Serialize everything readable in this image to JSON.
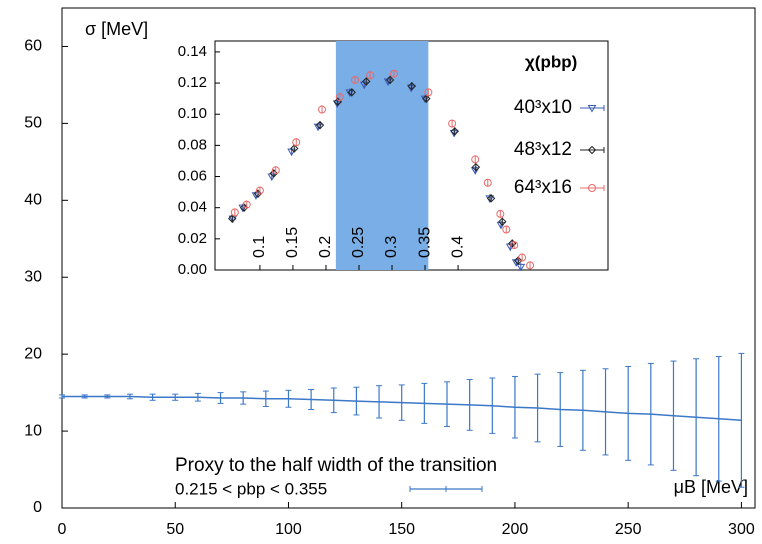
{
  "chart_data": [
    {
      "type": "line",
      "y_label": "σ [MeV]",
      "x_label": "μB [MeV]",
      "legend_title": "Proxy to the half width of the transition",
      "xlim": [
        0,
        306
      ],
      "ylim": [
        0,
        65
      ],
      "xticks": [
        0,
        50,
        100,
        150,
        200,
        250,
        300
      ],
      "yticks": [
        0,
        10,
        20,
        30,
        40,
        50,
        60
      ],
      "x": [
        0,
        10,
        20,
        30,
        40,
        50,
        60,
        70,
        80,
        90,
        100,
        110,
        120,
        130,
        140,
        150,
        160,
        170,
        180,
        190,
        200,
        210,
        220,
        230,
        240,
        250,
        260,
        270,
        280,
        290,
        300
      ],
      "series": [
        {
          "name": "0.215 < pbp < 0.355",
          "color": "#3b78c8",
          "values": [
            14.5,
            14.5,
            14.5,
            14.5,
            14.4,
            14.4,
            14.4,
            14.3,
            14.3,
            14.2,
            14.2,
            14.1,
            14.0,
            13.9,
            13.8,
            13.7,
            13.6,
            13.5,
            13.4,
            13.3,
            13.1,
            13.0,
            12.8,
            12.7,
            12.5,
            12.3,
            12.2,
            12.0,
            11.8,
            11.6,
            11.4
          ],
          "errors": [
            0.2,
            0.2,
            0.2,
            0.3,
            0.4,
            0.4,
            0.5,
            0.7,
            0.8,
            1.0,
            1.1,
            1.3,
            1.6,
            1.8,
            2.1,
            2.3,
            2.6,
            2.9,
            3.3,
            3.6,
            4.0,
            4.4,
            4.8,
            5.2,
            5.6,
            6.1,
            6.6,
            7.1,
            7.6,
            8.1,
            8.7
          ]
        }
      ]
    },
    {
      "type": "scatter",
      "legend_title": "χ(pbp)",
      "xlim": [
        0.032,
        0.627
      ],
      "ylim": [
        0,
        0.147
      ],
      "xticks": [
        0.1,
        0.15,
        0.2,
        0.25,
        0.3,
        0.35,
        0.4
      ],
      "yticks": [
        {
          "value": 0,
          "label": "0.00"
        },
        {
          "value": 0.02,
          "label": "0.02"
        },
        {
          "value": 0.04,
          "label": "0.04"
        },
        {
          "value": 0.06,
          "label": "0.06"
        },
        {
          "value": 0.08,
          "label": "0.08"
        },
        {
          "value": 0.1,
          "label": "0.10"
        },
        {
          "value": 0.12,
          "label": "0.12"
        },
        {
          "value": 0.14,
          "label": "0.14"
        }
      ],
      "shade": [
        0.215,
        0.355
      ],
      "shade_color": "#7aaee6",
      "series": [
        {
          "name": "40³x10",
          "color": "#3a5bb5",
          "marker": "triangle-down",
          "x": [
            0.059,
            0.074,
            0.094,
            0.118,
            0.148,
            0.188,
            0.217,
            0.236,
            0.258,
            0.294,
            0.329,
            0.35,
            0.394,
            0.426,
            0.448,
            0.465,
            0.479,
            0.488,
            0.495
          ],
          "values": [
            0.033,
            0.04,
            0.048,
            0.06,
            0.076,
            0.092,
            0.107,
            0.114,
            0.119,
            0.121,
            0.117,
            0.11,
            0.088,
            0.064,
            0.046,
            0.029,
            0.015,
            0.005,
            0.002
          ]
        },
        {
          "name": "48³x12",
          "color": "#222222",
          "marker": "diamond",
          "x": [
            0.058,
            0.076,
            0.097,
            0.121,
            0.152,
            0.191,
            0.218,
            0.239,
            0.261,
            0.297,
            0.33,
            0.352,
            0.395,
            0.427,
            0.45,
            0.467,
            0.482,
            0.491
          ],
          "values": [
            0.033,
            0.04,
            0.049,
            0.062,
            0.078,
            0.093,
            0.108,
            0.114,
            0.121,
            0.122,
            0.118,
            0.11,
            0.089,
            0.066,
            0.046,
            0.031,
            0.017,
            0.006
          ]
        },
        {
          "name": "64³x16",
          "color": "#e86a6a",
          "marker": "circle",
          "x": [
            0.062,
            0.08,
            0.1,
            0.124,
            0.155,
            0.194,
            0.221,
            0.244,
            0.267,
            0.303,
            0.355,
            0.391,
            0.426,
            0.445,
            0.464,
            0.473,
            0.485,
            0.497,
            0.509
          ],
          "values": [
            0.037,
            0.042,
            0.051,
            0.064,
            0.082,
            0.103,
            0.111,
            0.122,
            0.125,
            0.126,
            0.114,
            0.094,
            0.071,
            0.056,
            0.036,
            0.026,
            0.016,
            0.008,
            0.003
          ]
        }
      ]
    }
  ]
}
